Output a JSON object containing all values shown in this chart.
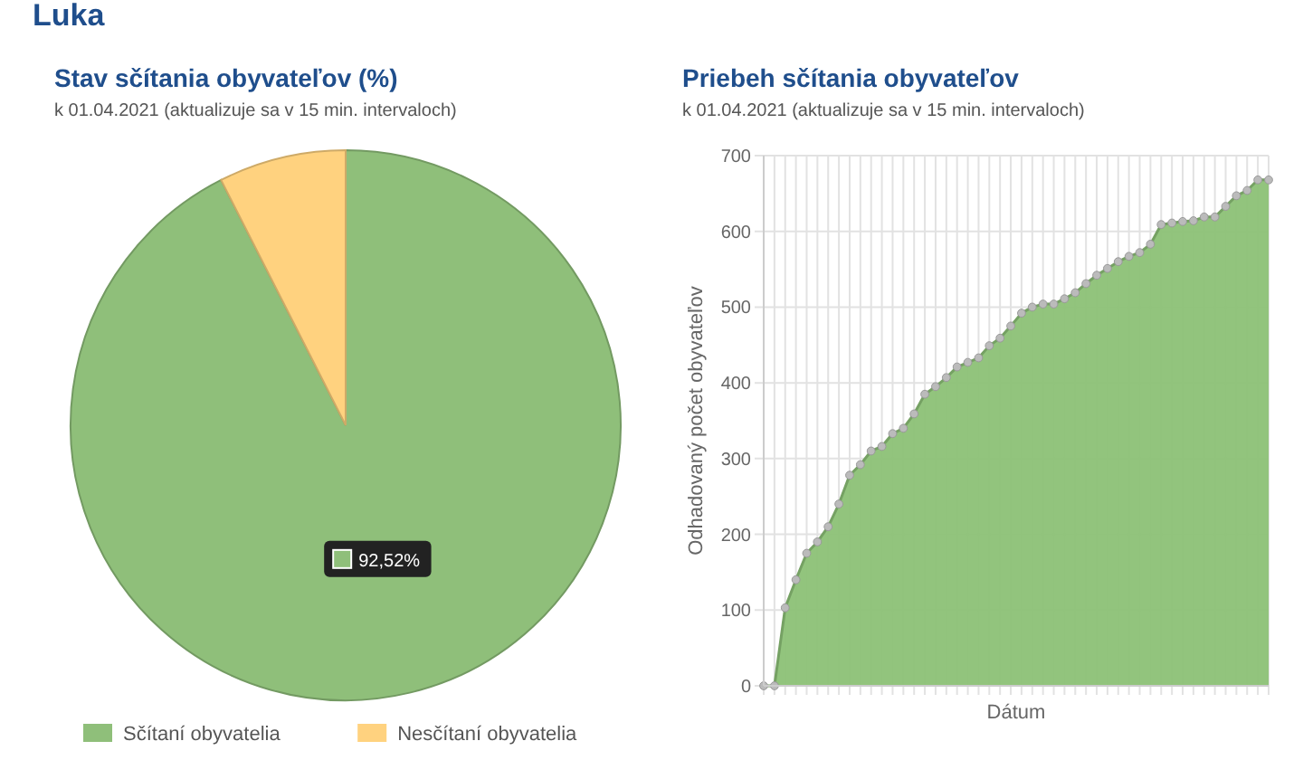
{
  "chart_data": [
    {
      "type": "pie",
      "title": "Stav sčítania obyvateľov (%)",
      "subtitle": "k 01.04.2021 (aktualizuje sa v 15 min. intervaloch)",
      "annotations": [
        "Luka"
      ],
      "categories": [
        "Sčítaní obyvatelia",
        "Nesčítaní obyvatelia"
      ],
      "values": [
        92.52,
        7.48
      ],
      "colors": [
        "#8fbf7a",
        "#ffd27f"
      ],
      "value_labels": [
        "92,52%",
        null
      ],
      "legend": "bottom"
    },
    {
      "type": "area",
      "title": "Priebeh sčítania obyvateľov",
      "subtitle": "k 01.04.2021 (aktualizuje sa v 15 min. intervaloch)",
      "xlabel": "Dátum",
      "ylabel": "Odhadovaný počet obyvateľov",
      "categories": [
        null,
        null,
        null,
        null,
        null,
        null,
        null,
        null,
        null,
        null,
        null,
        null,
        null,
        null,
        null,
        null,
        null,
        null,
        null,
        null,
        null,
        null,
        null,
        null,
        null,
        null,
        null,
        null,
        null,
        null,
        null,
        null,
        null,
        null,
        null,
        null,
        null,
        null,
        null,
        null,
        null,
        null,
        null,
        null,
        null,
        null,
        null,
        null
      ],
      "series": [
        {
          "color": "#8cc176",
          "values": [
            0,
            0,
            103,
            140,
            175,
            190,
            210,
            240,
            278,
            292,
            310,
            316,
            333,
            340,
            359,
            385,
            395,
            407,
            421,
            427,
            433,
            449,
            459,
            475,
            492,
            500,
            504,
            504,
            511,
            519,
            531,
            542,
            551,
            560,
            567,
            572,
            583,
            609,
            611,
            613,
            614,
            619,
            619,
            633,
            647,
            654,
            668,
            668
          ]
        }
      ],
      "ylim": [
        0,
        700
      ],
      "yticks": [
        0,
        100,
        200,
        300,
        400,
        500,
        600,
        700
      ],
      "grid": true,
      "marker": "circle"
    }
  ]
}
